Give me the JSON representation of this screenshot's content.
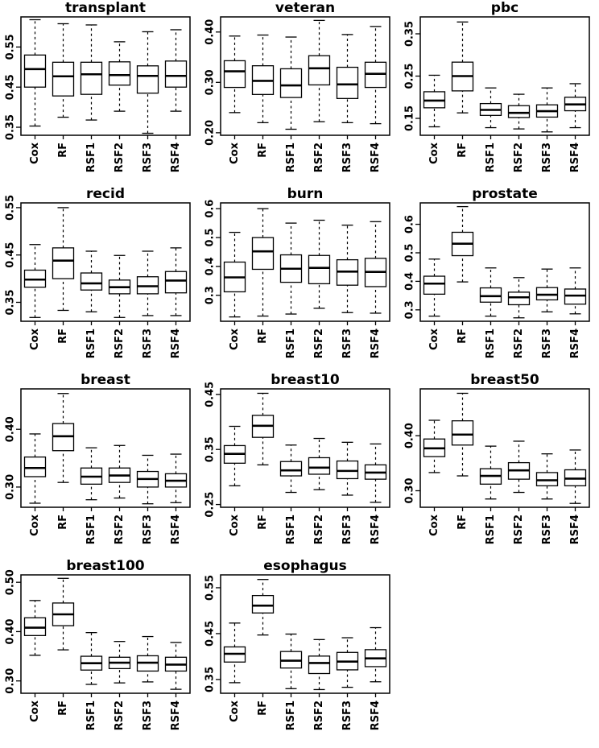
{
  "figure": {
    "background": "#ffffff",
    "stroke_color": "#000000",
    "n_panels": 11
  },
  "chart_data": {
    "type": "boxplot",
    "layout": "4x3 grid, last cell empty",
    "categories": [
      "Cox",
      "RF",
      "RSF1",
      "RSF2",
      "RSF3",
      "RSF4"
    ],
    "xlabel": "",
    "ylabel": "",
    "panels": [
      {
        "title": "transplant",
        "ylim": [
          0.33,
          0.625
        ],
        "yticks": [
          0.35,
          0.45,
          0.55
        ],
        "ytick_labels": [
          "0.35",
          "0.45",
          "0.55"
        ],
        "boxes": [
          {
            "low": 0.353,
            "q1": 0.45,
            "median": 0.495,
            "q3": 0.53,
            "high": 0.618
          },
          {
            "low": 0.375,
            "q1": 0.428,
            "median": 0.477,
            "q3": 0.512,
            "high": 0.608
          },
          {
            "low": 0.368,
            "q1": 0.432,
            "median": 0.482,
            "q3": 0.512,
            "high": 0.605
          },
          {
            "low": 0.39,
            "q1": 0.455,
            "median": 0.48,
            "q3": 0.513,
            "high": 0.563
          },
          {
            "low": 0.335,
            "q1": 0.435,
            "median": 0.478,
            "q3": 0.503,
            "high": 0.588
          },
          {
            "low": 0.39,
            "q1": 0.45,
            "median": 0.478,
            "q3": 0.515,
            "high": 0.593
          }
        ]
      },
      {
        "title": "veteran",
        "ylim": [
          0.195,
          0.43
        ],
        "yticks": [
          0.2,
          0.3,
          0.4
        ],
        "ytick_labels": [
          "0.20",
          "0.30",
          "0.40"
        ],
        "boxes": [
          {
            "low": 0.24,
            "q1": 0.29,
            "median": 0.322,
            "q3": 0.343,
            "high": 0.392
          },
          {
            "low": 0.22,
            "q1": 0.276,
            "median": 0.303,
            "q3": 0.333,
            "high": 0.394
          },
          {
            "low": 0.207,
            "q1": 0.27,
            "median": 0.294,
            "q3": 0.327,
            "high": 0.39
          },
          {
            "low": 0.222,
            "q1": 0.295,
            "median": 0.328,
            "q3": 0.353,
            "high": 0.423
          },
          {
            "low": 0.22,
            "q1": 0.268,
            "median": 0.296,
            "q3": 0.33,
            "high": 0.395
          },
          {
            "low": 0.218,
            "q1": 0.29,
            "median": 0.317,
            "q3": 0.34,
            "high": 0.411
          }
        ]
      },
      {
        "title": "pbc",
        "ylim": [
          0.11,
          0.39
        ],
        "yticks": [
          0.15,
          0.25,
          0.35
        ],
        "ytick_labels": [
          "0.15",
          "0.25",
          "0.35"
        ],
        "boxes": [
          {
            "low": 0.13,
            "q1": 0.175,
            "median": 0.192,
            "q3": 0.213,
            "high": 0.252
          },
          {
            "low": 0.163,
            "q1": 0.215,
            "median": 0.25,
            "q3": 0.283,
            "high": 0.378
          },
          {
            "low": 0.128,
            "q1": 0.157,
            "median": 0.17,
            "q3": 0.185,
            "high": 0.222
          },
          {
            "low": 0.125,
            "q1": 0.152,
            "median": 0.163,
            "q3": 0.18,
            "high": 0.207
          },
          {
            "low": 0.118,
            "q1": 0.153,
            "median": 0.167,
            "q3": 0.182,
            "high": 0.222
          },
          {
            "low": 0.128,
            "q1": 0.168,
            "median": 0.183,
            "q3": 0.2,
            "high": 0.232
          }
        ]
      },
      {
        "title": "recid",
        "ylim": [
          0.31,
          0.56
        ],
        "yticks": [
          0.35,
          0.45,
          0.55
        ],
        "ytick_labels": [
          "0.35",
          "0.45",
          "0.55"
        ],
        "boxes": [
          {
            "low": 0.318,
            "q1": 0.382,
            "median": 0.398,
            "q3": 0.418,
            "high": 0.472
          },
          {
            "low": 0.333,
            "q1": 0.4,
            "median": 0.438,
            "q3": 0.465,
            "high": 0.55
          },
          {
            "low": 0.33,
            "q1": 0.376,
            "median": 0.39,
            "q3": 0.412,
            "high": 0.458
          },
          {
            "low": 0.318,
            "q1": 0.368,
            "median": 0.382,
            "q3": 0.397,
            "high": 0.449
          },
          {
            "low": 0.322,
            "q1": 0.368,
            "median": 0.384,
            "q3": 0.404,
            "high": 0.458
          },
          {
            "low": 0.322,
            "q1": 0.37,
            "median": 0.396,
            "q3": 0.415,
            "high": 0.465
          }
        ]
      },
      {
        "title": "burn",
        "ylim": [
          0.21,
          0.62
        ],
        "yticks": [
          0.3,
          0.4,
          0.5,
          0.6
        ],
        "ytick_labels": [
          "0.3",
          "0.4",
          "0.5",
          "0.6"
        ],
        "boxes": [
          {
            "low": 0.225,
            "q1": 0.312,
            "median": 0.362,
            "q3": 0.415,
            "high": 0.518
          },
          {
            "low": 0.228,
            "q1": 0.39,
            "median": 0.452,
            "q3": 0.5,
            "high": 0.6
          },
          {
            "low": 0.235,
            "q1": 0.345,
            "median": 0.392,
            "q3": 0.44,
            "high": 0.55
          },
          {
            "low": 0.255,
            "q1": 0.34,
            "median": 0.395,
            "q3": 0.438,
            "high": 0.56
          },
          {
            "low": 0.24,
            "q1": 0.335,
            "median": 0.382,
            "q3": 0.423,
            "high": 0.543
          },
          {
            "low": 0.238,
            "q1": 0.33,
            "median": 0.381,
            "q3": 0.428,
            "high": 0.555
          }
        ]
      },
      {
        "title": "prostate",
        "ylim": [
          0.26,
          0.675
        ],
        "yticks": [
          0.3,
          0.4,
          0.5,
          0.6
        ],
        "ytick_labels": [
          "0.3",
          "0.4",
          "0.5",
          "0.6"
        ],
        "boxes": [
          {
            "low": 0.278,
            "q1": 0.355,
            "median": 0.392,
            "q3": 0.418,
            "high": 0.478
          },
          {
            "low": 0.398,
            "q1": 0.49,
            "median": 0.532,
            "q3": 0.572,
            "high": 0.662
          },
          {
            "low": 0.278,
            "q1": 0.327,
            "median": 0.348,
            "q3": 0.377,
            "high": 0.447
          },
          {
            "low": 0.272,
            "q1": 0.318,
            "median": 0.344,
            "q3": 0.362,
            "high": 0.413
          },
          {
            "low": 0.293,
            "q1": 0.335,
            "median": 0.353,
            "q3": 0.378,
            "high": 0.443
          },
          {
            "low": 0.286,
            "q1": 0.32,
            "median": 0.35,
            "q3": 0.373,
            "high": 0.447
          }
        ]
      },
      {
        "title": "breast",
        "ylim": [
          0.265,
          0.47
        ],
        "yticks": [
          0.3,
          0.4
        ],
        "ytick_labels": [
          "0.30",
          "0.40"
        ],
        "boxes": [
          {
            "low": 0.272,
            "q1": 0.318,
            "median": 0.333,
            "q3": 0.352,
            "high": 0.392
          },
          {
            "low": 0.308,
            "q1": 0.363,
            "median": 0.388,
            "q3": 0.41,
            "high": 0.462
          },
          {
            "low": 0.278,
            "q1": 0.305,
            "median": 0.318,
            "q3": 0.333,
            "high": 0.368
          },
          {
            "low": 0.281,
            "q1": 0.308,
            "median": 0.32,
            "q3": 0.333,
            "high": 0.372
          },
          {
            "low": 0.271,
            "q1": 0.3,
            "median": 0.314,
            "q3": 0.327,
            "high": 0.355
          },
          {
            "low": 0.273,
            "q1": 0.3,
            "median": 0.311,
            "q3": 0.323,
            "high": 0.357
          }
        ]
      },
      {
        "title": "breast10",
        "ylim": [
          0.245,
          0.46
        ],
        "yticks": [
          0.25,
          0.35,
          0.45
        ],
        "ytick_labels": [
          "0.25",
          "0.35",
          "0.45"
        ],
        "boxes": [
          {
            "low": 0.284,
            "q1": 0.325,
            "median": 0.342,
            "q3": 0.357,
            "high": 0.392
          },
          {
            "low": 0.322,
            "q1": 0.372,
            "median": 0.393,
            "q3": 0.412,
            "high": 0.452
          },
          {
            "low": 0.272,
            "q1": 0.302,
            "median": 0.312,
            "q3": 0.328,
            "high": 0.358
          },
          {
            "low": 0.277,
            "q1": 0.305,
            "median": 0.317,
            "q3": 0.335,
            "high": 0.37
          },
          {
            "low": 0.267,
            "q1": 0.297,
            "median": 0.311,
            "q3": 0.329,
            "high": 0.363
          },
          {
            "low": 0.254,
            "q1": 0.296,
            "median": 0.308,
            "q3": 0.322,
            "high": 0.36
          }
        ]
      },
      {
        "title": "breast50",
        "ylim": [
          0.27,
          0.485
        ],
        "yticks": [
          0.3,
          0.4
        ],
        "ytick_labels": [
          "0.30",
          "0.40"
        ],
        "boxes": [
          {
            "low": 0.333,
            "q1": 0.362,
            "median": 0.377,
            "q3": 0.394,
            "high": 0.428
          },
          {
            "low": 0.327,
            "q1": 0.383,
            "median": 0.402,
            "q3": 0.427,
            "high": 0.477
          },
          {
            "low": 0.285,
            "q1": 0.312,
            "median": 0.327,
            "q3": 0.34,
            "high": 0.381
          },
          {
            "low": 0.297,
            "q1": 0.321,
            "median": 0.337,
            "q3": 0.351,
            "high": 0.39
          },
          {
            "low": 0.285,
            "q1": 0.309,
            "median": 0.319,
            "q3": 0.333,
            "high": 0.367
          },
          {
            "low": 0.277,
            "q1": 0.309,
            "median": 0.322,
            "q3": 0.338,
            "high": 0.374
          }
        ]
      },
      {
        "title": "breast100",
        "ylim": [
          0.275,
          0.515
        ],
        "yticks": [
          0.3,
          0.4,
          0.5
        ],
        "ytick_labels": [
          "0.30",
          "0.40",
          "0.50"
        ],
        "boxes": [
          {
            "low": 0.352,
            "q1": 0.392,
            "median": 0.408,
            "q3": 0.428,
            "high": 0.463
          },
          {
            "low": 0.363,
            "q1": 0.412,
            "median": 0.435,
            "q3": 0.458,
            "high": 0.508
          },
          {
            "low": 0.293,
            "q1": 0.322,
            "median": 0.336,
            "q3": 0.35,
            "high": 0.398
          },
          {
            "low": 0.296,
            "q1": 0.325,
            "median": 0.337,
            "q3": 0.348,
            "high": 0.38
          },
          {
            "low": 0.298,
            "q1": 0.32,
            "median": 0.337,
            "q3": 0.351,
            "high": 0.39
          },
          {
            "low": 0.283,
            "q1": 0.32,
            "median": 0.333,
            "q3": 0.348,
            "high": 0.378
          }
        ]
      },
      {
        "title": "esophagus",
        "ylim": [
          0.32,
          0.578
        ],
        "yticks": [
          0.35,
          0.45,
          0.55
        ],
        "ytick_labels": [
          "0.35",
          "0.45",
          "0.55"
        ],
        "boxes": [
          {
            "low": 0.343,
            "q1": 0.388,
            "median": 0.406,
            "q3": 0.421,
            "high": 0.473
          },
          {
            "low": 0.447,
            "q1": 0.495,
            "median": 0.511,
            "q3": 0.533,
            "high": 0.568
          },
          {
            "low": 0.33,
            "q1": 0.375,
            "median": 0.391,
            "q3": 0.411,
            "high": 0.449
          },
          {
            "low": 0.328,
            "q1": 0.363,
            "median": 0.386,
            "q3": 0.401,
            "high": 0.437
          },
          {
            "low": 0.333,
            "q1": 0.371,
            "median": 0.389,
            "q3": 0.409,
            "high": 0.441
          },
          {
            "low": 0.345,
            "q1": 0.378,
            "median": 0.396,
            "q3": 0.415,
            "high": 0.463
          }
        ]
      }
    ]
  }
}
